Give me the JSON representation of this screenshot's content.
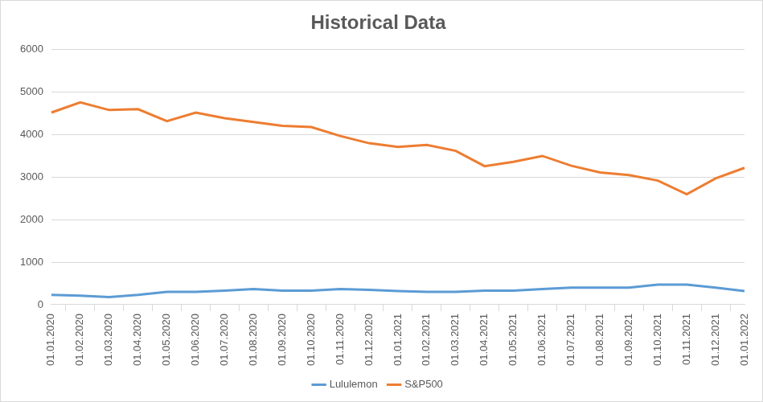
{
  "chart_data": {
    "type": "line",
    "title": "Historical Data",
    "categories": [
      "01.01.2020",
      "01.02.2020",
      "01.03.2020",
      "01.04.2020",
      "01.05.2020",
      "01.06.2020",
      "01.07.2020",
      "01.08.2020",
      "01.09.2020",
      "01.10.2020",
      "01.11.2020",
      "01.12.2020",
      "01.01.2021",
      "01.02.2021",
      "01.03.2021",
      "01.04.2021",
      "01.05.2021",
      "01.06.2021",
      "01.07.2021",
      "01.08.2021",
      "01.09.2021",
      "01.10.2021",
      "01.11.2021",
      "01.12.2021",
      "01.01.2022"
    ],
    "series": [
      {
        "name": "Lululemon",
        "color": "#5b9bd5",
        "values": [
          230,
          210,
          180,
          230,
          300,
          300,
          330,
          370,
          330,
          330,
          370,
          350,
          320,
          300,
          300,
          330,
          330,
          370,
          400,
          400,
          400,
          470,
          470,
          400,
          320
        ]
      },
      {
        "name": "S&P500",
        "color": "#ed7d31",
        "values": [
          4520,
          4760,
          4580,
          4600,
          4320,
          4520,
          4390,
          4300,
          4210,
          4180,
          3970,
          3800,
          3710,
          3760,
          3620,
          3260,
          3360,
          3500,
          3270,
          3110,
          3050,
          2920,
          2600,
          2970,
          3220
        ]
      }
    ],
    "ylim": [
      0,
      6000
    ],
    "yticks": [
      0,
      1000,
      2000,
      3000,
      4000,
      5000,
      6000
    ],
    "grid": true,
    "legend": "bottom",
    "marker": "none",
    "line_style": "solid"
  }
}
